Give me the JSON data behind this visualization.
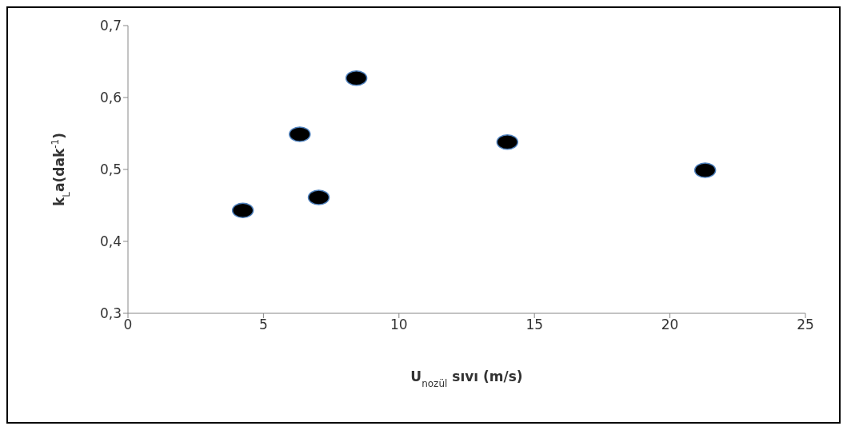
{
  "chart_data": {
    "type": "scatter",
    "xlabel": "U$_{nozül}$ sıvı (m/s)",
    "ylabel": "k$_{L}$a(dak$^{-1}$)",
    "x": [
      4.24,
      6.34,
      7.04,
      8.43,
      14.0,
      21.3
    ],
    "series": [
      {
        "color": "#000000",
        "values": [
          0.443,
          0.549,
          0.461,
          0.627,
          0.538,
          0.499
        ]
      }
    ],
    "xlim": [
      0,
      25
    ],
    "xticks": [
      0,
      5,
      10,
      15,
      20,
      25
    ],
    "ylim": [
      0.3,
      0.7
    ],
    "yticks": [
      {
        "value": 0.3,
        "label": "0,3"
      },
      {
        "value": 0.4,
        "label": "0,4"
      },
      {
        "value": 0.5,
        "label": "0,5"
      },
      {
        "value": 0.6,
        "label": "0,6"
      },
      {
        "value": 0.7,
        "label": "0,7"
      }
    ],
    "grid": false,
    "legend": false,
    "marker": "circle"
  }
}
